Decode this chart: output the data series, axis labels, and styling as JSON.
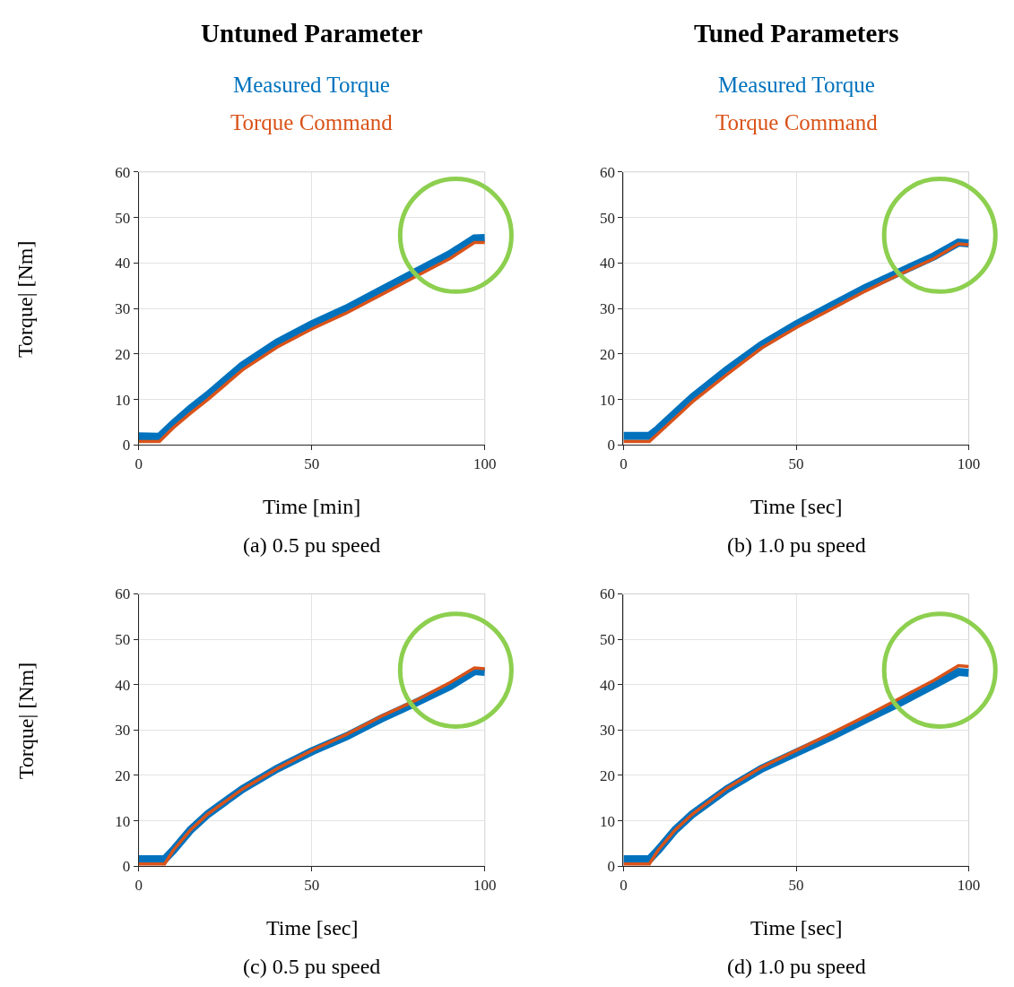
{
  "chart_data": [
    {
      "type": "line",
      "title": "Untuned Parameter",
      "xlabel": "Time [min]",
      "ylabel": "Torque| [Nm]",
      "annotations": [
        "(a) 0.5 pu speed"
      ],
      "legend": "top",
      "grid": true,
      "xlim": [
        0,
        100
      ],
      "xticks": [
        0,
        50,
        100
      ],
      "ylim": [
        0,
        60
      ],
      "yticks": [
        0,
        10,
        20,
        30,
        40,
        50,
        60
      ],
      "x": [
        0,
        6,
        10,
        15,
        20,
        30,
        40,
        50,
        60,
        70,
        80,
        90,
        97,
        100
      ],
      "series": [
        {
          "name": "Measured Torque",
          "color": "#0072bd",
          "values": [
            1.9,
            1.8,
            4.7,
            8,
            11,
            17.5,
            22.5,
            26.5,
            30,
            34,
            38,
            42,
            45.4,
            45.5
          ]
        },
        {
          "name": "Torque Command",
          "color": "#d95319",
          "values": [
            0.8,
            0.8,
            3.8,
            7,
            10,
            16.5,
            21.5,
            25.5,
            29,
            33,
            37,
            41,
            44.5,
            44.5
          ]
        }
      ]
    },
    {
      "type": "line",
      "title": "Tuned Parameters",
      "xlabel": "Time [sec]",
      "annotations": [
        "(b) 1.0 pu speed"
      ],
      "legend": "top",
      "grid": true,
      "xlim": [
        0,
        100
      ],
      "xticks": [
        0,
        50,
        100
      ],
      "ylim": [
        0,
        60
      ],
      "yticks": [
        0,
        10,
        20,
        30,
        40,
        50,
        60
      ],
      "x": [
        0,
        7.5,
        10,
        15,
        20,
        30,
        40,
        50,
        60,
        70,
        80,
        90,
        97,
        100
      ],
      "series": [
        {
          "name": "Measured Torque",
          "color": "#0072bd",
          "values": [
            2,
            2,
            3.5,
            7,
            10.5,
            16.5,
            22,
            26.5,
            30.5,
            34.5,
            38,
            41.5,
            44.5,
            44.3
          ]
        },
        {
          "name": "Torque Command",
          "color": "#d95319",
          "values": [
            0.8,
            0.8,
            2.5,
            6,
            9.5,
            15.5,
            21.3,
            25.8,
            29.8,
            33.8,
            37.5,
            41,
            44.2,
            44
          ]
        }
      ]
    },
    {
      "type": "line",
      "xlabel": "Time [sec]",
      "ylabel": "Torque| [Nm]",
      "annotations": [
        "(c) 0.5 pu speed"
      ],
      "grid": true,
      "xlim": [
        0,
        100
      ],
      "xticks": [
        0,
        50,
        100
      ],
      "ylim": [
        0,
        60
      ],
      "yticks": [
        0,
        10,
        20,
        30,
        40,
        50,
        60
      ],
      "x": [
        0,
        7.5,
        10,
        15,
        20,
        30,
        40,
        50,
        60,
        70,
        80,
        90,
        97,
        100
      ],
      "series": [
        {
          "color": "#0072bd",
          "values": [
            1.5,
            1.5,
            3.5,
            8,
            11.5,
            17,
            21.5,
            25.3,
            28.6,
            32.5,
            36,
            39.7,
            43,
            42.8
          ]
        },
        {
          "color": "#d95319",
          "values": [
            0.5,
            0.5,
            3.5,
            8,
            11.5,
            17,
            21.5,
            25.5,
            29,
            33,
            36.5,
            40.5,
            43.7,
            43.5
          ]
        }
      ]
    },
    {
      "type": "line",
      "xlabel": "Time [sec]",
      "annotations": [
        "(d) 1.0 pu speed"
      ],
      "grid": true,
      "xlim": [
        0,
        100
      ],
      "xticks": [
        0,
        50,
        100
      ],
      "ylim": [
        0,
        60
      ],
      "yticks": [
        0,
        10,
        20,
        30,
        40,
        50,
        60
      ],
      "x": [
        0,
        7.5,
        10,
        15,
        20,
        30,
        40,
        50,
        60,
        70,
        80,
        90,
        97,
        100
      ],
      "series": [
        {
          "color": "#0072bd",
          "values": [
            1.5,
            1.5,
            3.5,
            8,
            11.5,
            17,
            21.5,
            25,
            28.5,
            32.3,
            36,
            40,
            42.8,
            42.6
          ]
        },
        {
          "color": "#d95319",
          "values": [
            0.5,
            0.5,
            3.5,
            8,
            11.5,
            17.2,
            21.8,
            25.5,
            29.2,
            33,
            37,
            41,
            44.2,
            44
          ]
        }
      ]
    }
  ]
}
